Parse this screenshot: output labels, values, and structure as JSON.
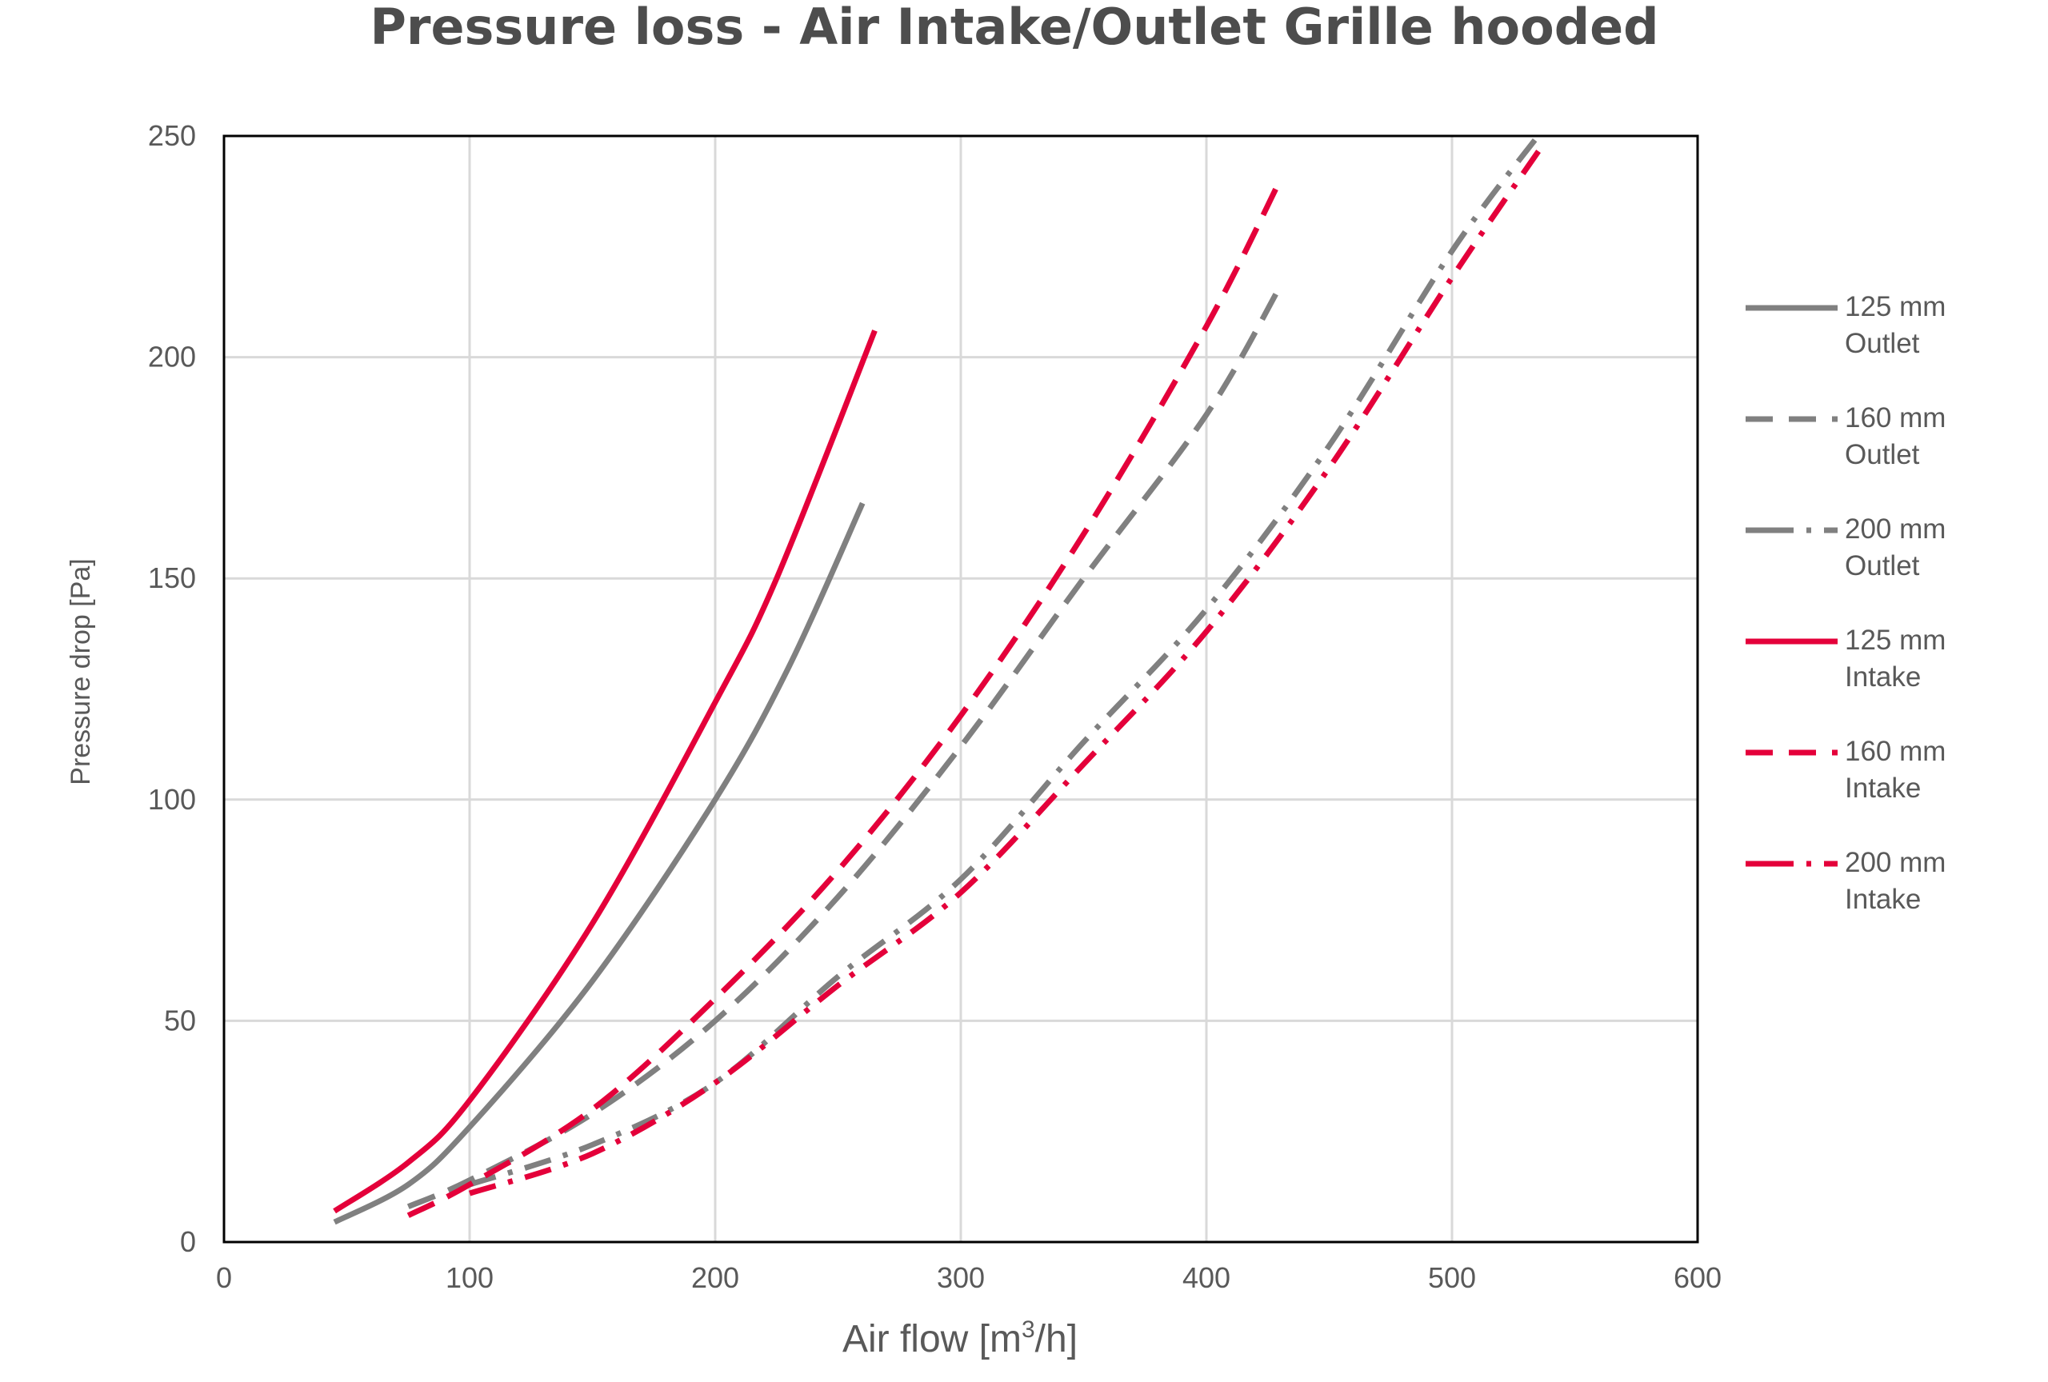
{
  "chart_data": {
    "type": "line",
    "title": "Pressure loss - Air Intake/Outlet Grille hooded",
    "xlabel": "Air flow [m3/h]",
    "xlabel_parts": {
      "prefix": "Air flow [m",
      "sup": "3",
      "suffix": "/h]"
    },
    "ylabel": "Pressure drop [Pa]",
    "xlim": [
      0,
      600
    ],
    "ylim": [
      0,
      250
    ],
    "xticks": [
      0,
      100,
      200,
      300,
      400,
      500,
      600
    ],
    "yticks": [
      0,
      50,
      100,
      150,
      200,
      250
    ],
    "grid": true,
    "legend_position": "right",
    "colors": {
      "outlet": "#808080",
      "intake": "#e4003a",
      "grid": "#d9d9d9",
      "axis": "#000000"
    },
    "series": [
      {
        "name": "125 mm Outlet",
        "name_lines": [
          "125 mm",
          "Outlet"
        ],
        "color": "#808080",
        "style": "solid",
        "x": [
          45,
          75,
          100,
          150,
          200,
          230,
          260
        ],
        "y": [
          4.5,
          13,
          26,
          59,
          100,
          130,
          167
        ]
      },
      {
        "name": "160 mm Outlet",
        "name_lines": [
          "160 mm",
          "Outlet"
        ],
        "color": "#808080",
        "style": "dash",
        "x": [
          75,
          100,
          150,
          200,
          250,
          300,
          350,
          400,
          430
        ],
        "y": [
          8,
          14,
          29,
          50,
          78,
          112,
          150,
          187,
          216
        ]
      },
      {
        "name": "200 mm Outlet",
        "name_lines": [
          "200 mm",
          "Outlet"
        ],
        "color": "#808080",
        "style": "dashdot",
        "x": [
          100,
          150,
          200,
          250,
          300,
          350,
          400,
          450,
          500,
          535
        ],
        "y": [
          13,
          22,
          36,
          60,
          82,
          113,
          143,
          180,
          224,
          250
        ]
      },
      {
        "name": "125 mm Intake",
        "name_lines": [
          "125 mm",
          "Intake"
        ],
        "color": "#e4003a",
        "style": "solid",
        "x": [
          45,
          75,
          100,
          150,
          200,
          225,
          265
        ],
        "y": [
          7,
          18,
          32,
          72,
          122,
          150,
          206
        ]
      },
      {
        "name": "160 mm Intake",
        "name_lines": [
          "160 mm",
          "Intake"
        ],
        "color": "#e4003a",
        "style": "dash",
        "x": [
          75,
          100,
          150,
          200,
          250,
          300,
          350,
          400,
          430
        ],
        "y": [
          6,
          13,
          30,
          55,
          84,
          119,
          160,
          207,
          240
        ]
      },
      {
        "name": "200 mm Intake",
        "name_lines": [
          "200 mm",
          "Intake"
        ],
        "color": "#e4003a",
        "style": "dashdot",
        "x": [
          100,
          150,
          200,
          250,
          300,
          350,
          400,
          450,
          500,
          537
        ],
        "y": [
          11,
          20,
          36,
          58,
          79,
          108,
          138,
          175,
          218,
          248
        ]
      }
    ]
  }
}
